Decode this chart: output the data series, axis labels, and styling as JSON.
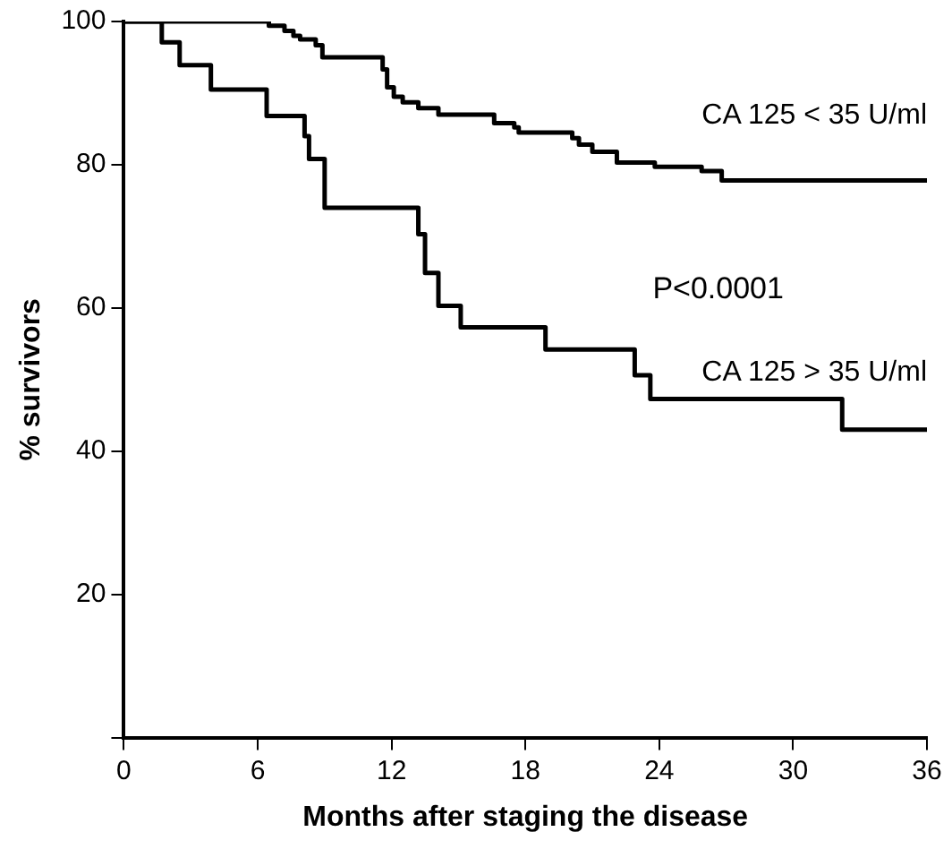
{
  "chart_data": {
    "type": "step",
    "xlabel": "Months after staging the disease",
    "ylabel": "% survivors",
    "xlim": [
      0,
      36
    ],
    "xticks": [
      0,
      6,
      12,
      18,
      24,
      30,
      36
    ],
    "ylim": [
      0,
      100
    ],
    "yticks": [
      {
        "value": 0,
        "label": null
      },
      20,
      40,
      60,
      80,
      100
    ],
    "legend": false,
    "grid": false,
    "marker": "none",
    "line_style": "solid",
    "annotations": [
      "P<0.0001"
    ],
    "series": [
      {
        "name": "CA 125 < 35 U/ml",
        "color": "#000000",
        "x": [
          0,
          6.5,
          7.2,
          7.6,
          7.9,
          8.6,
          8.9,
          11.6,
          11.8,
          12.1,
          12.5,
          13.2,
          14.1,
          16.6,
          17.5,
          17.7,
          20.1,
          20.4,
          21.0,
          22.1,
          23.8,
          25.9,
          26.8,
          27.5,
          36
        ],
        "values": [
          100,
          99.4,
          98.7,
          98,
          97.5,
          96.7,
          95,
          93.3,
          90.8,
          89.5,
          88.7,
          87.9,
          87,
          85.8,
          85.2,
          84.5,
          83.7,
          82.8,
          81.8,
          80.3,
          79.7,
          79.1,
          77.8,
          77.8,
          77.8
        ]
      },
      {
        "name": "CA 125 > 35 U/ml",
        "color": "#000000",
        "x": [
          0,
          1.7,
          2.5,
          3.9,
          6.4,
          8.1,
          8.3,
          9.0,
          13.2,
          13.5,
          14.1,
          15.1,
          18.9,
          22.9,
          23.6,
          32.2,
          36
        ],
        "values": [
          100,
          97.1,
          93.9,
          90.5,
          86.8,
          84,
          80.8,
          74,
          70.3,
          64.9,
          60.3,
          57.3,
          54.2,
          50.6,
          47.3,
          43,
          43
        ]
      }
    ]
  }
}
